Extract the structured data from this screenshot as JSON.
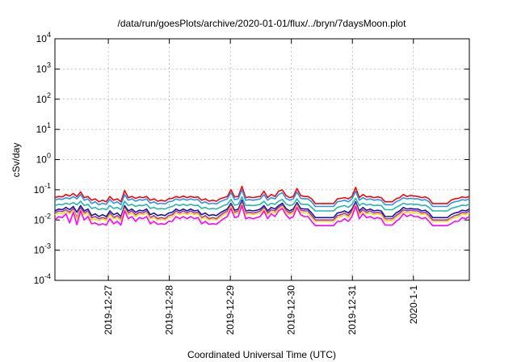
{
  "chart_data": {
    "type": "line",
    "title": "/data/run/goesPlots/archive/2020-01-01/flux/../bryn/7daysMoon.plot",
    "xlabel": "Coordinated Universal Time (UTC)",
    "ylabel": "cSv/day",
    "y_scale": "log",
    "ylim": [
      0.0001,
      10000
    ],
    "xlim": [
      "2019-12-26 03:00",
      "2020-01-01 22:00"
    ],
    "grid": true,
    "legend": "none",
    "y_ticks": [
      {
        "base": "10",
        "exp": "4"
      },
      {
        "base": "10",
        "exp": "3"
      },
      {
        "base": "10",
        "exp": "2"
      },
      {
        "base": "10",
        "exp": "1"
      },
      {
        "base": "10",
        "exp": "0"
      },
      {
        "base": "10",
        "exp": "-1"
      },
      {
        "base": "10",
        "exp": "-2"
      },
      {
        "base": "10",
        "exp": "-3"
      },
      {
        "base": "10",
        "exp": "-4"
      }
    ],
    "x_ticks": [
      "2019-12-27",
      "2019-12-28",
      "2019-12-29",
      "2019-12-30",
      "2019-12-31",
      "2020-1-1"
    ],
    "series": [
      {
        "color": "#ff0000",
        "values": [
          0.055,
          0.06,
          0.058,
          0.07,
          0.062,
          0.075,
          0.06,
          0.085,
          0.055,
          0.06,
          0.045,
          0.05,
          0.04,
          0.045,
          0.04,
          0.06,
          0.045,
          0.05,
          0.04,
          0.095,
          0.055,
          0.06,
          0.052,
          0.058,
          0.055,
          0.06,
          0.045,
          0.05,
          0.042,
          0.045,
          0.042,
          0.05,
          0.052,
          0.06,
          0.055,
          0.062,
          0.055,
          0.06,
          0.056,
          0.058,
          0.045,
          0.05,
          0.042,
          0.045,
          0.042,
          0.05,
          0.055,
          0.06,
          0.1,
          0.058,
          0.06,
          0.13,
          0.055,
          0.058,
          0.055,
          0.058,
          0.06,
          0.09,
          0.055,
          0.07,
          0.06,
          0.09,
          0.1,
          0.065,
          0.055,
          0.06,
          0.11,
          0.065,
          0.06,
          0.06,
          0.05,
          0.035,
          0.035,
          0.035,
          0.035,
          0.035,
          0.035,
          0.05,
          0.052,
          0.055,
          0.05,
          0.06,
          0.12,
          0.055,
          0.07,
          0.058,
          0.06,
          0.055,
          0.058,
          0.055,
          0.04,
          0.04,
          0.04,
          0.05,
          0.055,
          0.07,
          0.06,
          0.065,
          0.062,
          0.06,
          0.055,
          0.058,
          0.05,
          0.035,
          0.035,
          0.035,
          0.035,
          0.035,
          0.045,
          0.05,
          0.052,
          0.058,
          0.055,
          0.06
        ]
      },
      {
        "color": "#2196f3",
        "values": [
          0.045,
          0.05,
          0.048,
          0.055,
          0.05,
          0.06,
          0.05,
          0.07,
          0.045,
          0.05,
          0.035,
          0.04,
          0.032,
          0.036,
          0.033,
          0.048,
          0.036,
          0.04,
          0.032,
          0.07,
          0.045,
          0.05,
          0.042,
          0.047,
          0.045,
          0.05,
          0.036,
          0.04,
          0.034,
          0.036,
          0.034,
          0.04,
          0.042,
          0.05,
          0.045,
          0.05,
          0.045,
          0.05,
          0.046,
          0.048,
          0.036,
          0.04,
          0.034,
          0.036,
          0.034,
          0.04,
          0.045,
          0.05,
          0.08,
          0.047,
          0.05,
          0.1,
          0.045,
          0.047,
          0.045,
          0.047,
          0.05,
          0.07,
          0.045,
          0.055,
          0.05,
          0.07,
          0.08,
          0.052,
          0.045,
          0.05,
          0.085,
          0.052,
          0.05,
          0.05,
          0.04,
          0.028,
          0.028,
          0.028,
          0.028,
          0.028,
          0.028,
          0.04,
          0.042,
          0.045,
          0.04,
          0.05,
          0.09,
          0.045,
          0.055,
          0.047,
          0.05,
          0.045,
          0.047,
          0.045,
          0.032,
          0.032,
          0.032,
          0.04,
          0.045,
          0.055,
          0.05,
          0.052,
          0.05,
          0.05,
          0.045,
          0.047,
          0.04,
          0.028,
          0.028,
          0.028,
          0.028,
          0.028,
          0.036,
          0.04,
          0.042,
          0.047,
          0.045,
          0.05
        ]
      },
      {
        "color": "#22b8a8",
        "values": [
          0.03,
          0.033,
          0.032,
          0.036,
          0.033,
          0.038,
          0.032,
          0.042,
          0.03,
          0.033,
          0.024,
          0.026,
          0.022,
          0.024,
          0.022,
          0.03,
          0.024,
          0.026,
          0.022,
          0.042,
          0.03,
          0.033,
          0.028,
          0.031,
          0.03,
          0.033,
          0.024,
          0.026,
          0.023,
          0.024,
          0.023,
          0.026,
          0.028,
          0.033,
          0.03,
          0.033,
          0.03,
          0.033,
          0.03,
          0.031,
          0.024,
          0.026,
          0.023,
          0.024,
          0.023,
          0.026,
          0.03,
          0.033,
          0.048,
          0.031,
          0.033,
          0.058,
          0.03,
          0.031,
          0.03,
          0.031,
          0.033,
          0.042,
          0.03,
          0.036,
          0.033,
          0.042,
          0.048,
          0.034,
          0.03,
          0.033,
          0.05,
          0.034,
          0.033,
          0.033,
          0.026,
          0.02,
          0.02,
          0.02,
          0.02,
          0.02,
          0.02,
          0.026,
          0.028,
          0.03,
          0.026,
          0.033,
          0.052,
          0.03,
          0.036,
          0.031,
          0.033,
          0.03,
          0.031,
          0.03,
          0.022,
          0.022,
          0.022,
          0.026,
          0.03,
          0.036,
          0.033,
          0.034,
          0.033,
          0.033,
          0.03,
          0.031,
          0.026,
          0.02,
          0.02,
          0.02,
          0.02,
          0.02,
          0.024,
          0.026,
          0.028,
          0.031,
          0.03,
          0.033
        ]
      },
      {
        "color": "#1a1a8c",
        "values": [
          0.02,
          0.023,
          0.022,
          0.026,
          0.022,
          0.028,
          0.018,
          0.03,
          0.02,
          0.023,
          0.014,
          0.016,
          0.013,
          0.015,
          0.013,
          0.02,
          0.015,
          0.017,
          0.013,
          0.03,
          0.02,
          0.023,
          0.018,
          0.021,
          0.02,
          0.023,
          0.015,
          0.017,
          0.014,
          0.015,
          0.014,
          0.017,
          0.018,
          0.023,
          0.02,
          0.023,
          0.02,
          0.023,
          0.02,
          0.021,
          0.015,
          0.017,
          0.014,
          0.015,
          0.014,
          0.017,
          0.02,
          0.023,
          0.036,
          0.021,
          0.023,
          0.045,
          0.02,
          0.021,
          0.02,
          0.021,
          0.023,
          0.03,
          0.02,
          0.026,
          0.023,
          0.03,
          0.036,
          0.024,
          0.02,
          0.023,
          0.038,
          0.024,
          0.023,
          0.023,
          0.017,
          0.012,
          0.012,
          0.012,
          0.012,
          0.012,
          0.012,
          0.017,
          0.018,
          0.02,
          0.017,
          0.023,
          0.04,
          0.02,
          0.026,
          0.021,
          0.023,
          0.02,
          0.021,
          0.02,
          0.013,
          0.013,
          0.013,
          0.017,
          0.02,
          0.026,
          0.023,
          0.024,
          0.023,
          0.023,
          0.02,
          0.021,
          0.017,
          0.012,
          0.012,
          0.012,
          0.012,
          0.012,
          0.015,
          0.017,
          0.018,
          0.021,
          0.02,
          0.023
        ]
      },
      {
        "color": "#9933cc",
        "values": [
          0.017,
          0.02,
          0.019,
          0.022,
          0.018,
          0.024,
          0.012,
          0.025,
          0.017,
          0.02,
          0.012,
          0.013,
          0.011,
          0.012,
          0.011,
          0.017,
          0.012,
          0.014,
          0.011,
          0.026,
          0.017,
          0.02,
          0.015,
          0.018,
          0.017,
          0.02,
          0.012,
          0.014,
          0.011,
          0.012,
          0.011,
          0.014,
          0.015,
          0.02,
          0.017,
          0.02,
          0.017,
          0.02,
          0.017,
          0.018,
          0.012,
          0.014,
          0.011,
          0.012,
          0.011,
          0.014,
          0.017,
          0.02,
          0.032,
          0.018,
          0.02,
          0.04,
          0.017,
          0.018,
          0.017,
          0.018,
          0.02,
          0.026,
          0.017,
          0.022,
          0.02,
          0.026,
          0.032,
          0.021,
          0.017,
          0.02,
          0.034,
          0.021,
          0.02,
          0.02,
          0.014,
          0.01,
          0.01,
          0.01,
          0.01,
          0.01,
          0.01,
          0.014,
          0.015,
          0.017,
          0.014,
          0.02,
          0.036,
          0.017,
          0.022,
          0.018,
          0.02,
          0.017,
          0.018,
          0.017,
          0.011,
          0.011,
          0.011,
          0.014,
          0.017,
          0.022,
          0.02,
          0.021,
          0.02,
          0.02,
          0.017,
          0.018,
          0.014,
          0.01,
          0.01,
          0.01,
          0.01,
          0.01,
          0.012,
          0.014,
          0.015,
          0.018,
          0.017,
          0.02
        ]
      },
      {
        "color": "#ffd700",
        "values": [
          0.015,
          0.017,
          0.016,
          0.019,
          0.016,
          0.021,
          0.011,
          0.022,
          0.015,
          0.017,
          0.01,
          0.011,
          0.0095,
          0.011,
          0.0095,
          0.015,
          0.011,
          0.012,
          0.0095,
          0.023,
          0.015,
          0.017,
          0.013,
          0.016,
          0.015,
          0.017,
          0.011,
          0.012,
          0.01,
          0.011,
          0.01,
          0.012,
          0.013,
          0.017,
          0.015,
          0.017,
          0.015,
          0.017,
          0.015,
          0.016,
          0.011,
          0.012,
          0.01,
          0.011,
          0.01,
          0.012,
          0.015,
          0.017,
          0.028,
          0.016,
          0.017,
          0.034,
          0.015,
          0.016,
          0.015,
          0.016,
          0.017,
          0.023,
          0.015,
          0.019,
          0.017,
          0.023,
          0.028,
          0.018,
          0.015,
          0.017,
          0.03,
          0.018,
          0.017,
          0.017,
          0.012,
          0.009,
          0.009,
          0.009,
          0.009,
          0.009,
          0.009,
          0.012,
          0.013,
          0.015,
          0.012,
          0.017,
          0.031,
          0.015,
          0.019,
          0.016,
          0.017,
          0.015,
          0.016,
          0.015,
          0.0095,
          0.0095,
          0.0095,
          0.012,
          0.015,
          0.019,
          0.017,
          0.018,
          0.017,
          0.017,
          0.015,
          0.016,
          0.012,
          0.009,
          0.009,
          0.009,
          0.009,
          0.009,
          0.011,
          0.012,
          0.013,
          0.016,
          0.015,
          0.017
        ]
      },
      {
        "color": "#ff00ff",
        "values": [
          0.01,
          0.013,
          0.012,
          0.016,
          0.008,
          0.018,
          0.007,
          0.02,
          0.01,
          0.013,
          0.0075,
          0.008,
          0.0068,
          0.0075,
          0.0068,
          0.011,
          0.0075,
          0.009,
          0.0068,
          0.02,
          0.011,
          0.013,
          0.009,
          0.012,
          0.011,
          0.013,
          0.0075,
          0.009,
          0.0072,
          0.0075,
          0.0072,
          0.009,
          0.009,
          0.013,
          0.011,
          0.013,
          0.011,
          0.013,
          0.011,
          0.012,
          0.0075,
          0.009,
          0.0072,
          0.0075,
          0.0072,
          0.009,
          0.011,
          0.013,
          0.024,
          0.012,
          0.013,
          0.03,
          0.011,
          0.012,
          0.011,
          0.012,
          0.013,
          0.02,
          0.011,
          0.016,
          0.013,
          0.02,
          0.024,
          0.015,
          0.011,
          0.013,
          0.026,
          0.015,
          0.013,
          0.013,
          0.009,
          0.0065,
          0.0065,
          0.0065,
          0.0065,
          0.0065,
          0.0065,
          0.009,
          0.009,
          0.011,
          0.009,
          0.013,
          0.028,
          0.011,
          0.016,
          0.012,
          0.013,
          0.011,
          0.012,
          0.011,
          0.0068,
          0.0068,
          0.0068,
          0.009,
          0.011,
          0.016,
          0.013,
          0.015,
          0.013,
          0.013,
          0.011,
          0.012,
          0.009,
          0.0065,
          0.0065,
          0.0065,
          0.0065,
          0.0065,
          0.0075,
          0.009,
          0.009,
          0.012,
          0.011,
          0.013
        ]
      }
    ]
  }
}
